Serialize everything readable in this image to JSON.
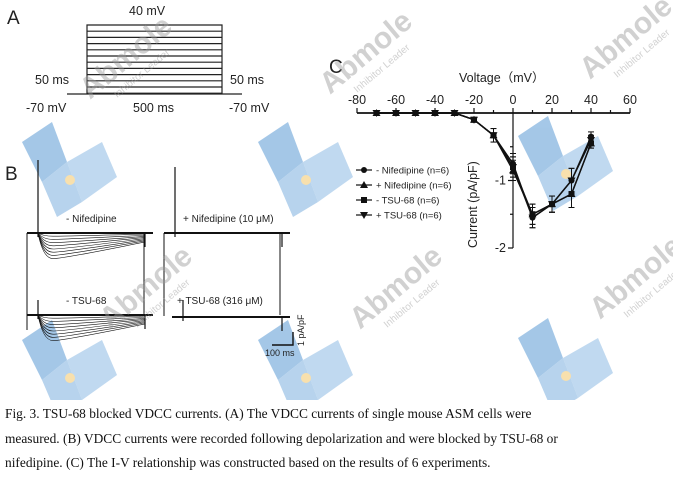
{
  "watermark": {
    "brand": "Abmole",
    "tagline": "Inhibitor Leader",
    "colors": {
      "blue": "#5b9bd5",
      "dot": "#f3c76b"
    }
  },
  "panel_a": {
    "letter": "A",
    "top_voltage": "40 mV",
    "left_duration": "50 ms",
    "right_duration": "50 ms",
    "left_hold": "-70 mV",
    "step_duration": "500 ms",
    "right_hold": "-70 mV"
  },
  "panel_b": {
    "letter": "B",
    "labels": [
      "- Nifedipine",
      "+ Nifedipine (10 μM)",
      "- TSU-68",
      "+ TSU-68 (316 μM)"
    ],
    "scale_time": "100 ms",
    "scale_current": "1 pA/pF"
  },
  "chart_data": {
    "type": "line",
    "panel_letter": "C",
    "xlabel": "Voltage（mV）",
    "ylabel": "Current (pA/pF)",
    "xlim": [
      -80,
      60
    ],
    "ylim": [
      -2,
      0
    ],
    "xticks": [
      "-80",
      "-60",
      "-40",
      "-20",
      "0",
      "20",
      "40",
      "60"
    ],
    "yticks": [
      "-1",
      "-2"
    ],
    "x": [
      -70,
      -60,
      -50,
      -40,
      -30,
      -20,
      -10,
      0,
      10,
      20,
      30,
      40
    ],
    "series": [
      {
        "name": "- Nifedipine (n=6)",
        "marker": "circle",
        "values": [
          0,
          0,
          0,
          0,
          0,
          -0.1,
          -0.33,
          -0.75,
          -1.55,
          -1.35,
          -1.0,
          -0.35
        ],
        "error": [
          0,
          0,
          0,
          0,
          0,
          0.03,
          0.1,
          0.15,
          0.15,
          0.12,
          0.18,
          0.07
        ]
      },
      {
        "name": "+ Nifedipine (n=6)",
        "marker": "triangle-up",
        "values": [
          0,
          0,
          0,
          0,
          0,
          -0.1,
          -0.33,
          -0.85,
          -1.5,
          -1.35,
          -1.2,
          -0.45
        ],
        "error": [
          0,
          0,
          0,
          0,
          0,
          0.03,
          0.1,
          0.15,
          0.15,
          0.12,
          0.2,
          0.07
        ]
      },
      {
        "name": "- TSU-68 (n=6)",
        "marker": "square",
        "values": [
          0,
          0,
          0,
          0,
          0,
          -0.1,
          -0.33,
          -0.8,
          -1.5,
          -1.35,
          -1.2,
          -0.45
        ],
        "error": [
          0,
          0,
          0,
          0,
          0,
          0.03,
          0.1,
          0.15,
          0.15,
          0.12,
          0.2,
          0.07
        ]
      },
      {
        "name": "+ TSU-68 (n=6)",
        "marker": "triangle-down",
        "values": [
          0,
          0,
          0,
          0,
          0,
          -0.1,
          -0.33,
          -0.8,
          -1.55,
          -1.35,
          -1.0,
          -0.4
        ],
        "error": [
          0,
          0,
          0,
          0,
          0,
          0.03,
          0.1,
          0.15,
          0.15,
          0.12,
          0.18,
          0.07
        ]
      }
    ],
    "legend": "left"
  },
  "caption": {
    "lines": [
      "Fig. 3. TSU-68 blocked VDCC currents. (A) The VDCC currents of single mouse ASM cells were",
      "measured. (B) VDCC currents were recorded following depolarization and were blocked by TSU-68 or",
      "nifedipine. (C) The I-V relationship was constructed based on the results of 6 experiments."
    ]
  }
}
